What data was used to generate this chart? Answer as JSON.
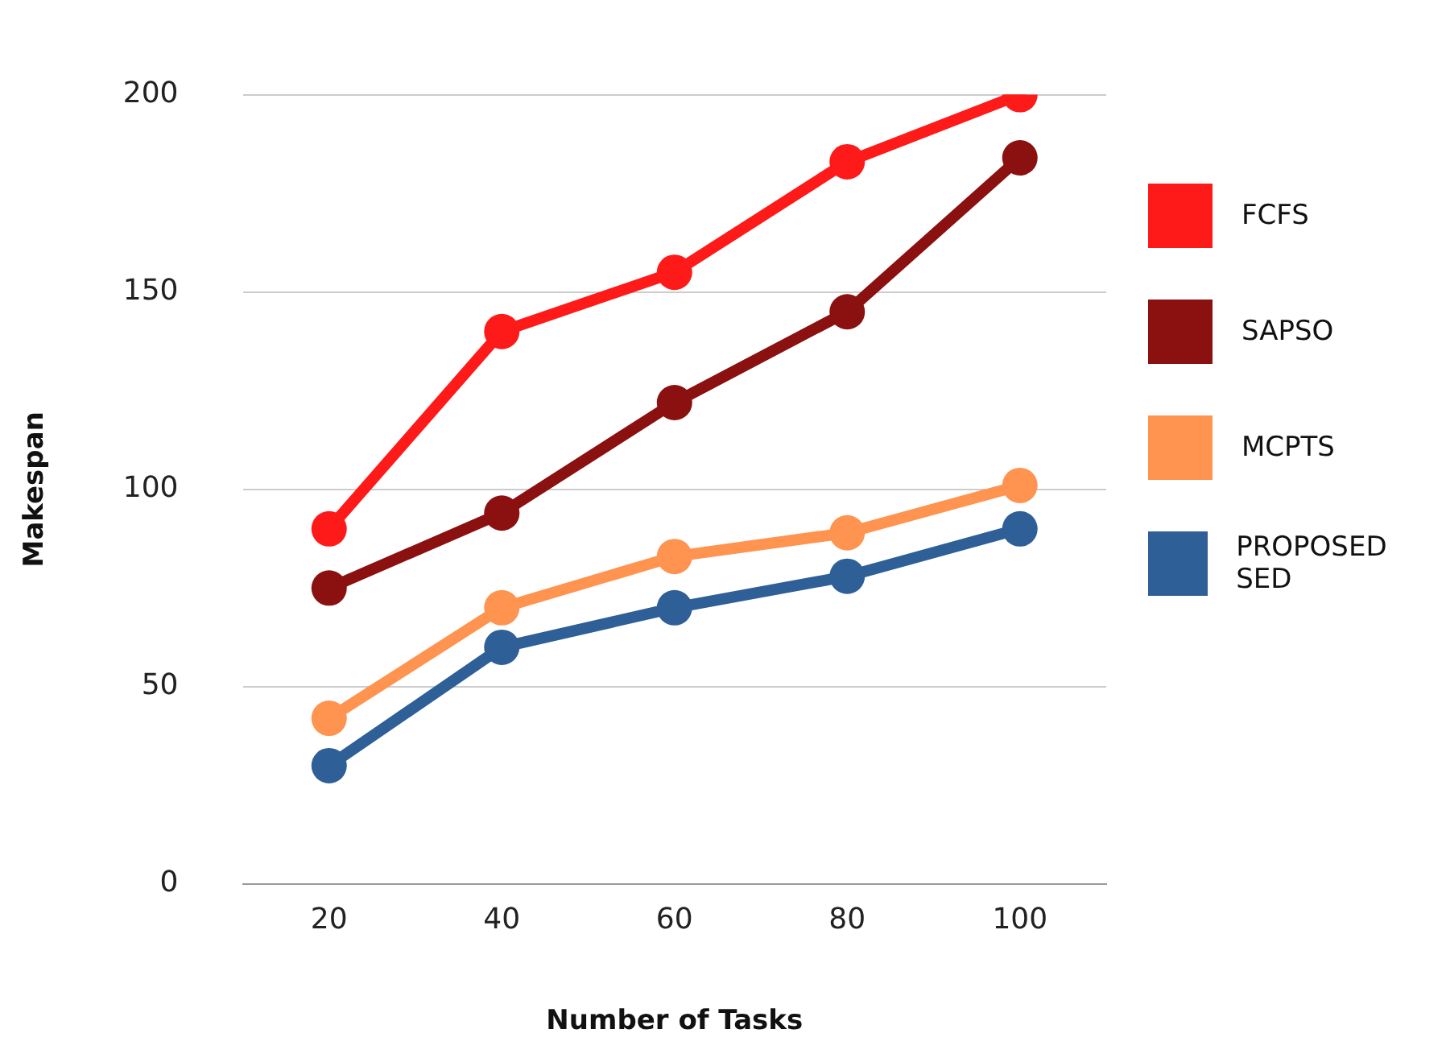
{
  "chart_data": {
    "type": "line",
    "xlabel": "Number of Tasks",
    "ylabel": "Makespan",
    "categories": [
      "20",
      "40",
      "60",
      "80",
      "100"
    ],
    "ylim": [
      0,
      200
    ],
    "yticks": [
      0,
      50,
      100,
      150,
      200
    ],
    "grid": "y",
    "legend": "right",
    "marker": "circle",
    "line_style": "solid",
    "series": [
      {
        "name": "PROPOSED SED",
        "color": "#2f5f97",
        "values": [
          30,
          60,
          70,
          78,
          90
        ]
      },
      {
        "name": "MCPTS",
        "color": "#ff9350",
        "values": [
          42,
          70,
          83,
          89,
          101
        ]
      },
      {
        "name": "SAPSO",
        "color": "#8b1010",
        "values": [
          75,
          94,
          122,
          145,
          184
        ]
      },
      {
        "name": "FCFS",
        "color": "#ff1a1a",
        "values": [
          90,
          140,
          155,
          183,
          200
        ]
      }
    ]
  }
}
